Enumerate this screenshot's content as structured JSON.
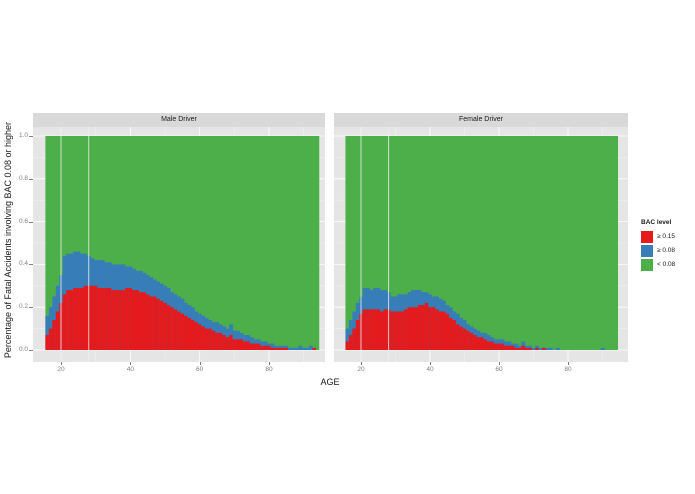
{
  "chart_data": {
    "type": "bar",
    "stacked": true,
    "title": "",
    "xlabel": "AGE",
    "ylabel": "Percentage of Fatal Accidents involving BAC 0.08 or higher",
    "ylim": [
      0,
      1.0
    ],
    "yticks": [
      "0.0",
      "0.2",
      "0.4",
      "0.6",
      "0.8",
      "1.0"
    ],
    "xticks": [
      "20",
      "40",
      "60",
      "80"
    ],
    "grid": true,
    "legend_position": "right",
    "legend_title": "BAC level",
    "series_legend": [
      {
        "name": "≥ 0.15",
        "color": "#e41a1c"
      },
      {
        "name": "≥ 0.08",
        "color": "#377eb8"
      },
      {
        "name": "< 0.08",
        "color": "#4daf4a"
      }
    ],
    "vlines_age": [
      20,
      28
    ],
    "panels": [
      {
        "label": "Male Driver",
        "ages_start": 16,
        "ages_end": 94,
        "bac_ge_015": [
          0.07,
          0.1,
          0.14,
          0.18,
          0.22,
          0.26,
          0.28,
          0.28,
          0.29,
          0.29,
          0.29,
          0.3,
          0.3,
          0.3,
          0.3,
          0.29,
          0.29,
          0.29,
          0.29,
          0.28,
          0.28,
          0.28,
          0.28,
          0.29,
          0.29,
          0.28,
          0.28,
          0.27,
          0.27,
          0.26,
          0.25,
          0.25,
          0.24,
          0.23,
          0.22,
          0.21,
          0.2,
          0.19,
          0.18,
          0.17,
          0.16,
          0.15,
          0.14,
          0.13,
          0.12,
          0.11,
          0.1,
          0.1,
          0.09,
          0.08,
          0.08,
          0.07,
          0.06,
          0.07,
          0.05,
          0.05,
          0.05,
          0.04,
          0.04,
          0.03,
          0.03,
          0.03,
          0.02,
          0.02,
          0.02,
          0.01,
          0.01,
          0.01,
          0.01,
          0.01,
          0.0,
          0.0,
          0.0,
          0.0,
          0.0,
          0.0,
          0.0,
          0.01,
          0.0
        ],
        "bac_ge_008_total": [
          0.16,
          0.2,
          0.25,
          0.3,
          0.35,
          0.44,
          0.45,
          0.45,
          0.46,
          0.46,
          0.45,
          0.45,
          0.44,
          0.43,
          0.42,
          0.42,
          0.42,
          0.41,
          0.41,
          0.4,
          0.4,
          0.4,
          0.4,
          0.39,
          0.39,
          0.38,
          0.37,
          0.37,
          0.36,
          0.35,
          0.34,
          0.33,
          0.32,
          0.31,
          0.3,
          0.29,
          0.27,
          0.26,
          0.25,
          0.24,
          0.22,
          0.21,
          0.2,
          0.18,
          0.17,
          0.16,
          0.15,
          0.14,
          0.13,
          0.13,
          0.12,
          0.11,
          0.1,
          0.12,
          0.09,
          0.09,
          0.08,
          0.07,
          0.07,
          0.06,
          0.05,
          0.05,
          0.04,
          0.04,
          0.03,
          0.03,
          0.02,
          0.02,
          0.02,
          0.02,
          0.01,
          0.01,
          0.01,
          0.02,
          0.01,
          0.01,
          0.02,
          0.01,
          0.0
        ]
      },
      {
        "label": "Female Driver",
        "ages_start": 16,
        "ages_end": 94,
        "bac_ge_015": [
          0.04,
          0.07,
          0.1,
          0.14,
          0.17,
          0.19,
          0.19,
          0.19,
          0.19,
          0.19,
          0.18,
          0.19,
          0.19,
          0.18,
          0.18,
          0.18,
          0.18,
          0.19,
          0.2,
          0.2,
          0.2,
          0.21,
          0.21,
          0.22,
          0.2,
          0.2,
          0.19,
          0.18,
          0.18,
          0.17,
          0.15,
          0.14,
          0.12,
          0.11,
          0.1,
          0.09,
          0.08,
          0.07,
          0.06,
          0.06,
          0.05,
          0.04,
          0.04,
          0.03,
          0.03,
          0.03,
          0.02,
          0.02,
          0.02,
          0.01,
          0.01,
          0.02,
          0.01,
          0.01,
          0.0,
          0.01,
          0.0,
          0.01,
          0.0,
          0.0,
          0.0,
          0.0,
          0.0,
          0.0,
          0.0,
          0.0,
          0.0,
          0.0,
          0.0,
          0.0,
          0.0,
          0.0,
          0.0,
          0.0,
          0.0,
          0.0,
          0.0,
          0.0,
          0.0
        ],
        "bac_ge_008_total": [
          0.1,
          0.14,
          0.18,
          0.22,
          0.25,
          0.29,
          0.29,
          0.28,
          0.29,
          0.29,
          0.28,
          0.28,
          0.27,
          0.25,
          0.25,
          0.26,
          0.26,
          0.26,
          0.27,
          0.28,
          0.28,
          0.28,
          0.27,
          0.27,
          0.26,
          0.25,
          0.25,
          0.24,
          0.23,
          0.21,
          0.2,
          0.18,
          0.17,
          0.15,
          0.14,
          0.12,
          0.11,
          0.1,
          0.09,
          0.08,
          0.08,
          0.07,
          0.06,
          0.05,
          0.05,
          0.05,
          0.04,
          0.04,
          0.03,
          0.03,
          0.02,
          0.04,
          0.02,
          0.02,
          0.01,
          0.02,
          0.01,
          0.01,
          0.01,
          0.01,
          0.0,
          0.01,
          0.0,
          0.0,
          0.0,
          0.0,
          0.0,
          0.0,
          0.0,
          0.0,
          0.0,
          0.0,
          0.0,
          0.0,
          0.01,
          0.0,
          0.0,
          0.0,
          0.0
        ]
      }
    ]
  },
  "colors": {
    "red": "#e41a1c",
    "blue": "#377eb8",
    "green": "#4daf4a",
    "panel_bg": "#e5e5e5",
    "strip_bg": "#d9d9d9"
  }
}
